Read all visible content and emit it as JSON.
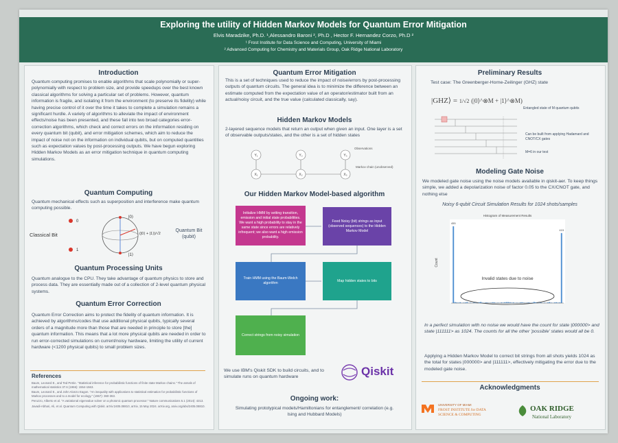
{
  "header": {
    "title": "Exploring the utility of Hidden Markov Models for Quantum Error Mitigation",
    "authors": "Elvis Maradzike, Ph.D. ¹,Alessandro Baroni ², Ph.D , Hector F. Hernandez Corzo, Ph.D ²",
    "affiliations": [
      "¹ Frost Institute for Data Science and Computing, University of Miami",
      "² Advanced Computing for Chemistry and Materials Group, Oak Ridge National Laboratory"
    ]
  },
  "left": {
    "intro": {
      "heading": "Introduction",
      "text": "Quantum computing promises to enable algorithms that scale polynomially or super-polynomially with respect to problem size, and provide speedups over the best known classical algorithms for solving a particular set of problems. However, quantum information is fragile, and isolating it from the environment (to preserve its fidelity) while having precise control of it over the time it takes to complete a simulation remains a significant hurdle. A variety of algorithms to alleviate the impact of environment effects/noise has been presented, and these fall into two broad categories error-correction algorithms, which check and correct errors on the information residing on every quantum bit (qubit), and error mitigation schemes, which aim to reduce the impact of noise not on the information on individual qubits, but on computed quantities such as expectation values by post-processing outputs. We have begun exploring Hidden Markov Models as an error mitigation technique in quantum computing simulations."
    },
    "quantum_computing": {
      "heading": "Quantum Computing",
      "text": "Quantum mechanical effects such as superposition and interference make quantum computing possible.",
      "classical_bit": "Classical Bit",
      "quantum_bit": "Quantum Bit (qubit)",
      "bit0": "0",
      "bit1": "1",
      "ket0": "|0⟩",
      "ket1": "|1⟩",
      "superposition": "(|0⟩ + |1⟩)/√2"
    },
    "qpu": {
      "heading": "Quantum Processing Units",
      "text": "Quantum analogue to the CPU. They take advantage of quantum physics to store and process data. They are essentially made out of a collection of 2-level quantum physical systems."
    },
    "qec": {
      "heading": "Quantum Error Correction",
      "text": "Quantum Error Correction aims to protect the fidelity of quantum information. It is achieved by algorithms/codes that use additional physical qubits, typically several orders of a magnitude more than those that are needed in principle to store [the] quantum information. This means that a lot more physical qubits are needed in order to run error-corrected simulations on current/noisy hardware, limiting the utility of current hardware (<1200 physical qubits) to small problem sizes."
    },
    "references": {
      "heading": "References",
      "items": [
        "Baum, Leonard E., and Ted Petrie. \"Statistical inference for probabilistic functions of finite state Markov chains.\" The annals of mathematical statistics 37.6 (1966): 1554-1563.",
        "Baum, Leonard E., and John Alonzo Eagon. \"An inequality with applications to statistical estimation for probabilistic functions of Markov processes and to a model for ecology.\" (1967): 360-363.",
        "Peruzzo, Alberto et al. \"A variational eigenvalue solver on a photonic quantum processor.\" Nature communications 5.1 (2014): 4213.",
        "Javadi-Abhari, Ali, et al. Quantum Computing with Qiskit. arXiv:2405.08810, arXiv, 15 May 2024. arXiv.org, arxiv.org/abs/2405.08810."
      ]
    }
  },
  "middle": {
    "qem": {
      "heading": "Quantum Error Mitigation",
      "text": "This is a set of techniques used to reduce the impact of noise/errors by post-processing outputs of quantum circuits. The general idea is to minimize the difference between an estimate computed from the expectation value of an operator/estimator built from an actual/noisy circuit, and the true value (calculated classically, say)."
    },
    "hmm": {
      "heading": "Hidden Markov Models",
      "text": "2-layered sequence models that return an output when given an input. One layer is a set of observable outputs/states, and the other is a set of hidden states",
      "observations": "Observations",
      "chain": "Markov chain (unobserved)",
      "hidden_nodes": [
        "X₁",
        "X₂",
        "X₃"
      ],
      "observed_nodes": [
        "Y₁",
        "Y₂",
        "Y₃"
      ]
    },
    "algorithm": {
      "heading": "Our Hidden Markov Model-based algorithm",
      "steps": [
        "Initialize HMM by setting transition, emission and initial state probabilities. We want a high probability to stay in the same state since errors are relatively infrequent; we also want a high emission probability.",
        "Feed Noisy (bit) strings as input (observed sequences) to the Hidden Markov Model",
        "Train HMM using the Baum-Welch algorithm",
        "Map hidden states to bits",
        "Correct strings from noisy simulation"
      ]
    },
    "qiskit": {
      "text": "We use IBM's Qiskit SDK to build circuits, and to simulate runs on quantum hardware",
      "logo": "Qiskit"
    },
    "ongoing": {
      "heading": "Ongoing work:",
      "text": "Simulating prototypical models/Hamiltonians for entanglement/ correlation (e.g. Ising and Hubbard Models)"
    }
  },
  "right": {
    "prelim": {
      "heading": "Preliminary Results",
      "test_case": "Test case: The Greenberger-Horne-Zeilinger (GHZ) state",
      "formula_lhs": "|GHZ⟩ =",
      "formula_frac": "1/√2",
      "formula_rhs": "(|0⟩^⊗M + |1⟩^⊗M)",
      "formula_note": "Entangled state of M quantum qubits",
      "circuit_note": "Can be built from applying Hadamard and CNOT/CX gates",
      "m_note": "M=6 in our test"
    },
    "noise": {
      "heading": "Modeling Gate Noise",
      "text": "We modeled gate noise using the noise models available in qiskit-aer. To keep things simple, we added a depolarization noise of factor 0.05 to the CX/CNOT gate, and nothing else",
      "subtitle": "Noisy 6-qubit Circuit Simulation Results for 1024 shots/samples"
    },
    "histogram": {
      "type": "bar",
      "title": "Histogram of Measurement Results",
      "ylabel": "Count",
      "annotation": "Invalid states due to noise",
      "values": [
        455,
        6,
        4,
        3,
        5,
        2,
        3,
        4,
        6,
        2,
        3,
        2,
        4,
        3,
        2,
        5,
        7,
        3,
        2,
        4,
        3,
        2,
        3,
        5,
        4,
        2,
        3,
        2,
        4,
        3,
        5,
        6,
        6,
        5,
        3,
        4,
        2,
        3,
        2,
        4,
        5,
        3,
        2,
        3,
        4,
        2,
        3,
        7,
        5,
        2,
        3,
        4,
        2,
        3,
        2,
        4,
        6,
        3,
        2,
        4,
        5,
        3,
        4,
        415
      ],
      "color": "#4d8fd1"
    },
    "perfect_text": "In a perfect simulation with no noise we would have the count for state |000000> and state |111111> as 1024. The counts for all the other 'possible' states would all be 0.",
    "applied_text": "Applying a Hidden Markov Model to correct bit strings from all shots yields 1024 as the total for states |000000> and |111111>, effectively mitigating the error due to the modeled gate noise.",
    "ack": {
      "heading": "Acknowledgments",
      "um": "UNIVERSITY OF MIAMI",
      "frost": "FROST INSTITUTE for DATA SCIENCE & COMPUTING",
      "ornl": "OAK RIDGE",
      "ornl_sub": "National Laboratory"
    }
  }
}
